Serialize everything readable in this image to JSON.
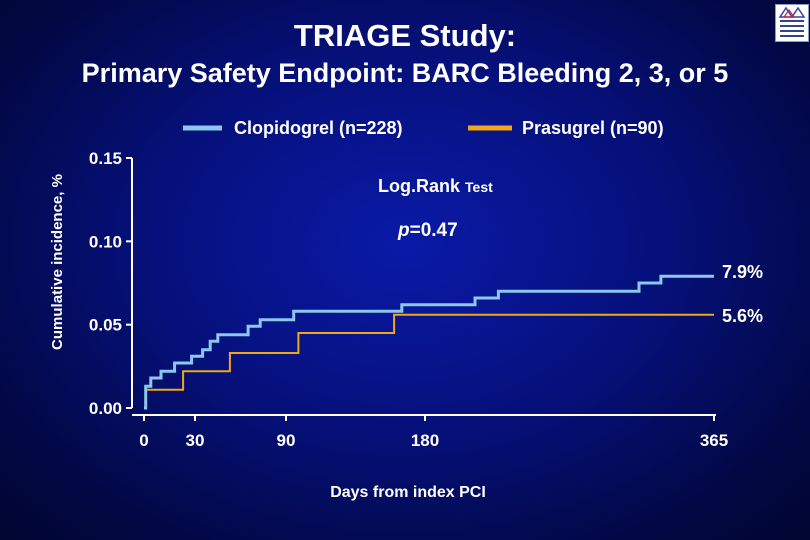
{
  "header": {
    "title": "TRIAGE Study:",
    "subtitle": "Primary Safety Endpoint: BARC Bleeding 2, 3, or 5"
  },
  "colors": {
    "background": "#06107a",
    "clopidogrel": "#8cc8ee",
    "prasugrel": "#f0a818",
    "axis": "#ffffff"
  },
  "chart_data": {
    "type": "line",
    "subtype": "kaplan-meier step curves",
    "xlabel": "Days  from index PCI",
    "ylabel": "Cumulative incidence, %",
    "xlim": [
      0,
      365
    ],
    "ylim": [
      0,
      0.15
    ],
    "x_ticks": [
      0,
      30,
      90,
      180,
      365
    ],
    "x_tick_labels": [
      "0",
      "30",
      "90",
      "180",
      "365"
    ],
    "y_ticks": [
      0.0,
      0.05,
      0.1,
      0.15
    ],
    "y_tick_labels": [
      "0.00",
      "0.05",
      "0.10",
      "0.15"
    ],
    "grid": false,
    "legend_position": "top",
    "annotation": {
      "test_label": "Log.Rank",
      "test_suffix": "Test",
      "p_symbol": "p",
      "p_value": "=0.47"
    },
    "series": [
      {
        "name": "Clopidogrel (n=228)",
        "color": "#8cc8ee",
        "end_label": "7.9%",
        "points": [
          [
            0,
            0.0
          ],
          [
            1,
            0.013
          ],
          [
            4,
            0.018
          ],
          [
            10,
            0.022
          ],
          [
            18,
            0.027
          ],
          [
            28,
            0.031
          ],
          [
            35,
            0.035
          ],
          [
            40,
            0.04
          ],
          [
            45,
            0.044
          ],
          [
            65,
            0.049
          ],
          [
            73,
            0.053
          ],
          [
            95,
            0.058
          ],
          [
            163,
            0.058
          ],
          [
            165,
            0.062
          ],
          [
            212,
            0.066
          ],
          [
            227,
            0.07
          ],
          [
            315,
            0.07
          ],
          [
            317,
            0.075
          ],
          [
            331,
            0.079
          ],
          [
            365,
            0.079
          ]
        ]
      },
      {
        "name": "Prasugrel (n=90)",
        "color": "#f0a818",
        "end_label": "5.6%",
        "points": [
          [
            0,
            0.0
          ],
          [
            1,
            0.011
          ],
          [
            22,
            0.011
          ],
          [
            23,
            0.022
          ],
          [
            52,
            0.022
          ],
          [
            53,
            0.033
          ],
          [
            97,
            0.033
          ],
          [
            98,
            0.045
          ],
          [
            158,
            0.045
          ],
          [
            160,
            0.056
          ],
          [
            365,
            0.056
          ]
        ]
      }
    ]
  }
}
